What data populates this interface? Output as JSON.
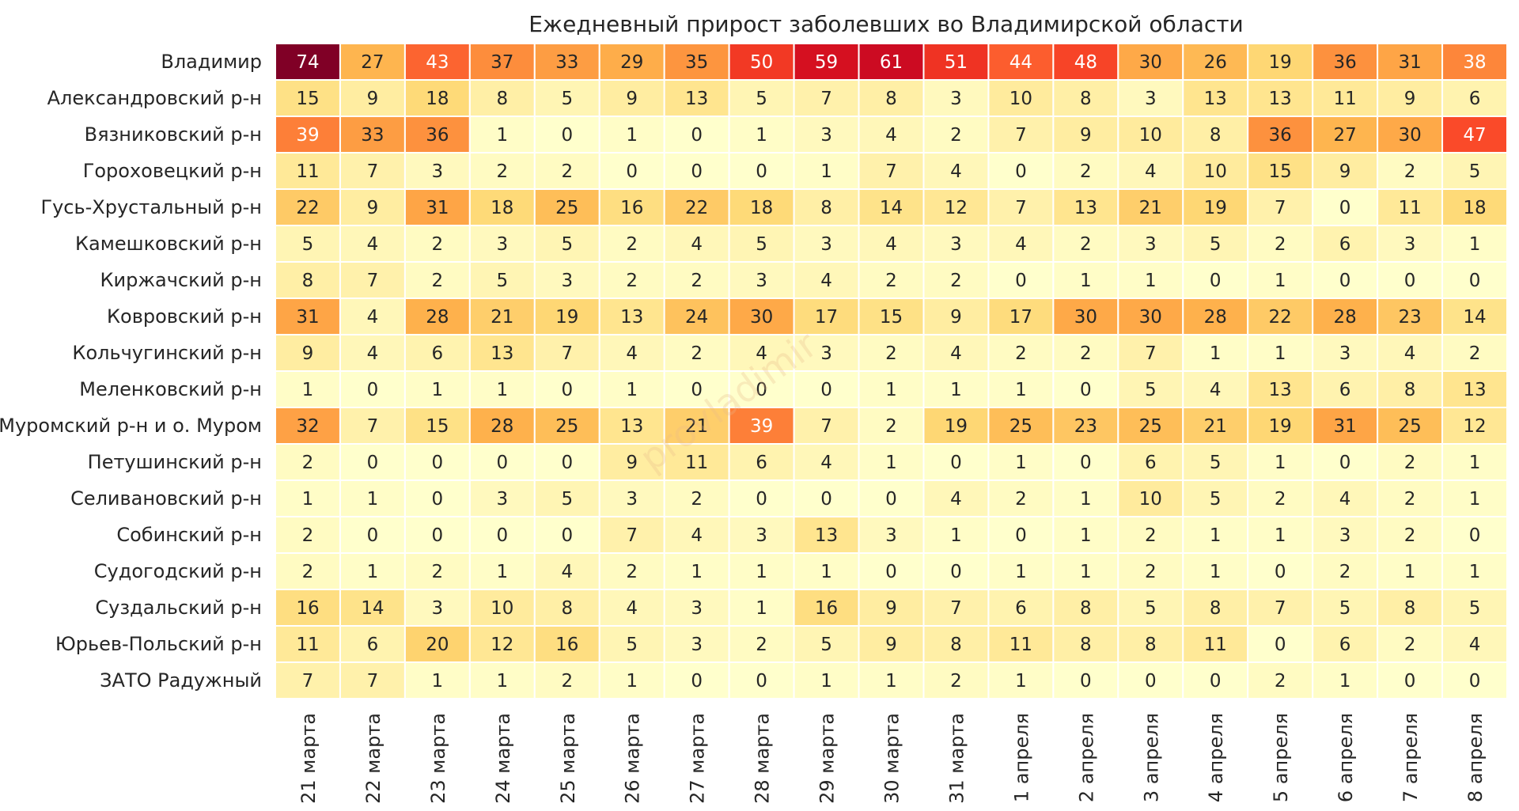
{
  "chart_data": {
    "type": "heatmap",
    "title": "Ежедневный прирост заболевших во Владимирской области",
    "watermark": "provladimir",
    "colormap": "YlOrRd",
    "vmin": 0,
    "vmax": 74,
    "rows": [
      "Владимир",
      "Александровский р-н",
      "Вязниковский р-н",
      "Гороховецкий р-н",
      "Гусь-Хрустальный р-н",
      "Камешковский р-н",
      "Киржачский р-н",
      "Ковровский р-н",
      "Кольчугинский р-н",
      "Меленковский р-н",
      "Муромский р-н и о. Муром",
      "Петушинский р-н",
      "Селивановский р-н",
      "Собинский р-н",
      "Судогодский р-н",
      "Суздальский р-н",
      "Юрьев-Польский р-н",
      "ЗАТО Радужный"
    ],
    "columns": [
      "21 марта",
      "22 марта",
      "23 марта",
      "24 марта",
      "25 марта",
      "26 марта",
      "27 марта",
      "28 марта",
      "29 марта",
      "30 марта",
      "31 марта",
      "1 апреля",
      "2 апреля",
      "3 апреля",
      "4 апреля",
      "5 апреля",
      "6 апреля",
      "7 апреля",
      "8 апреля"
    ],
    "values": [
      [
        74,
        27,
        43,
        37,
        33,
        29,
        35,
        50,
        59,
        61,
        51,
        44,
        48,
        30,
        26,
        19,
        36,
        31,
        38
      ],
      [
        15,
        9,
        18,
        8,
        5,
        9,
        13,
        5,
        7,
        8,
        3,
        10,
        8,
        3,
        13,
        13,
        11,
        9,
        6
      ],
      [
        39,
        33,
        36,
        1,
        0,
        1,
        0,
        1,
        3,
        4,
        2,
        7,
        9,
        10,
        8,
        36,
        27,
        30,
        47
      ],
      [
        11,
        7,
        3,
        2,
        2,
        0,
        0,
        0,
        1,
        7,
        4,
        0,
        2,
        4,
        10,
        15,
        9,
        2,
        5
      ],
      [
        22,
        9,
        31,
        18,
        25,
        16,
        22,
        18,
        8,
        14,
        12,
        7,
        13,
        21,
        19,
        7,
        0,
        11,
        18
      ],
      [
        5,
        4,
        2,
        3,
        5,
        2,
        4,
        5,
        3,
        4,
        3,
        4,
        2,
        3,
        5,
        2,
        6,
        3,
        1
      ],
      [
        8,
        7,
        2,
        5,
        3,
        2,
        2,
        3,
        4,
        2,
        2,
        0,
        1,
        1,
        0,
        1,
        0,
        0,
        0
      ],
      [
        31,
        4,
        28,
        21,
        19,
        13,
        24,
        30,
        17,
        15,
        9,
        17,
        30,
        30,
        28,
        22,
        28,
        23,
        14
      ],
      [
        9,
        4,
        6,
        13,
        7,
        4,
        2,
        4,
        3,
        2,
        4,
        2,
        2,
        7,
        1,
        1,
        3,
        4,
        2
      ],
      [
        1,
        0,
        1,
        1,
        0,
        1,
        0,
        0,
        0,
        1,
        1,
        1,
        0,
        5,
        4,
        13,
        6,
        8,
        13
      ],
      [
        32,
        7,
        15,
        28,
        25,
        13,
        21,
        39,
        7,
        2,
        19,
        25,
        23,
        25,
        21,
        19,
        31,
        25,
        12
      ],
      [
        2,
        0,
        0,
        0,
        0,
        9,
        11,
        6,
        4,
        1,
        0,
        1,
        0,
        6,
        5,
        1,
        0,
        2,
        1
      ],
      [
        1,
        1,
        0,
        3,
        5,
        3,
        2,
        0,
        0,
        0,
        4,
        2,
        1,
        10,
        5,
        2,
        4,
        2,
        1
      ],
      [
        2,
        0,
        0,
        0,
        0,
        7,
        4,
        3,
        13,
        3,
        1,
        0,
        1,
        2,
        1,
        1,
        3,
        2,
        0
      ],
      [
        2,
        1,
        2,
        1,
        4,
        2,
        1,
        1,
        1,
        0,
        0,
        1,
        1,
        2,
        1,
        0,
        2,
        1,
        1
      ],
      [
        16,
        14,
        3,
        10,
        8,
        4,
        3,
        1,
        16,
        9,
        7,
        6,
        8,
        5,
        8,
        7,
        5,
        8,
        5
      ],
      [
        11,
        6,
        20,
        12,
        16,
        5,
        3,
        2,
        5,
        9,
        8,
        11,
        8,
        8,
        11,
        0,
        6,
        2,
        4
      ],
      [
        7,
        7,
        1,
        1,
        2,
        1,
        0,
        0,
        1,
        1,
        2,
        1,
        0,
        0,
        0,
        2,
        1,
        0,
        0
      ]
    ]
  }
}
